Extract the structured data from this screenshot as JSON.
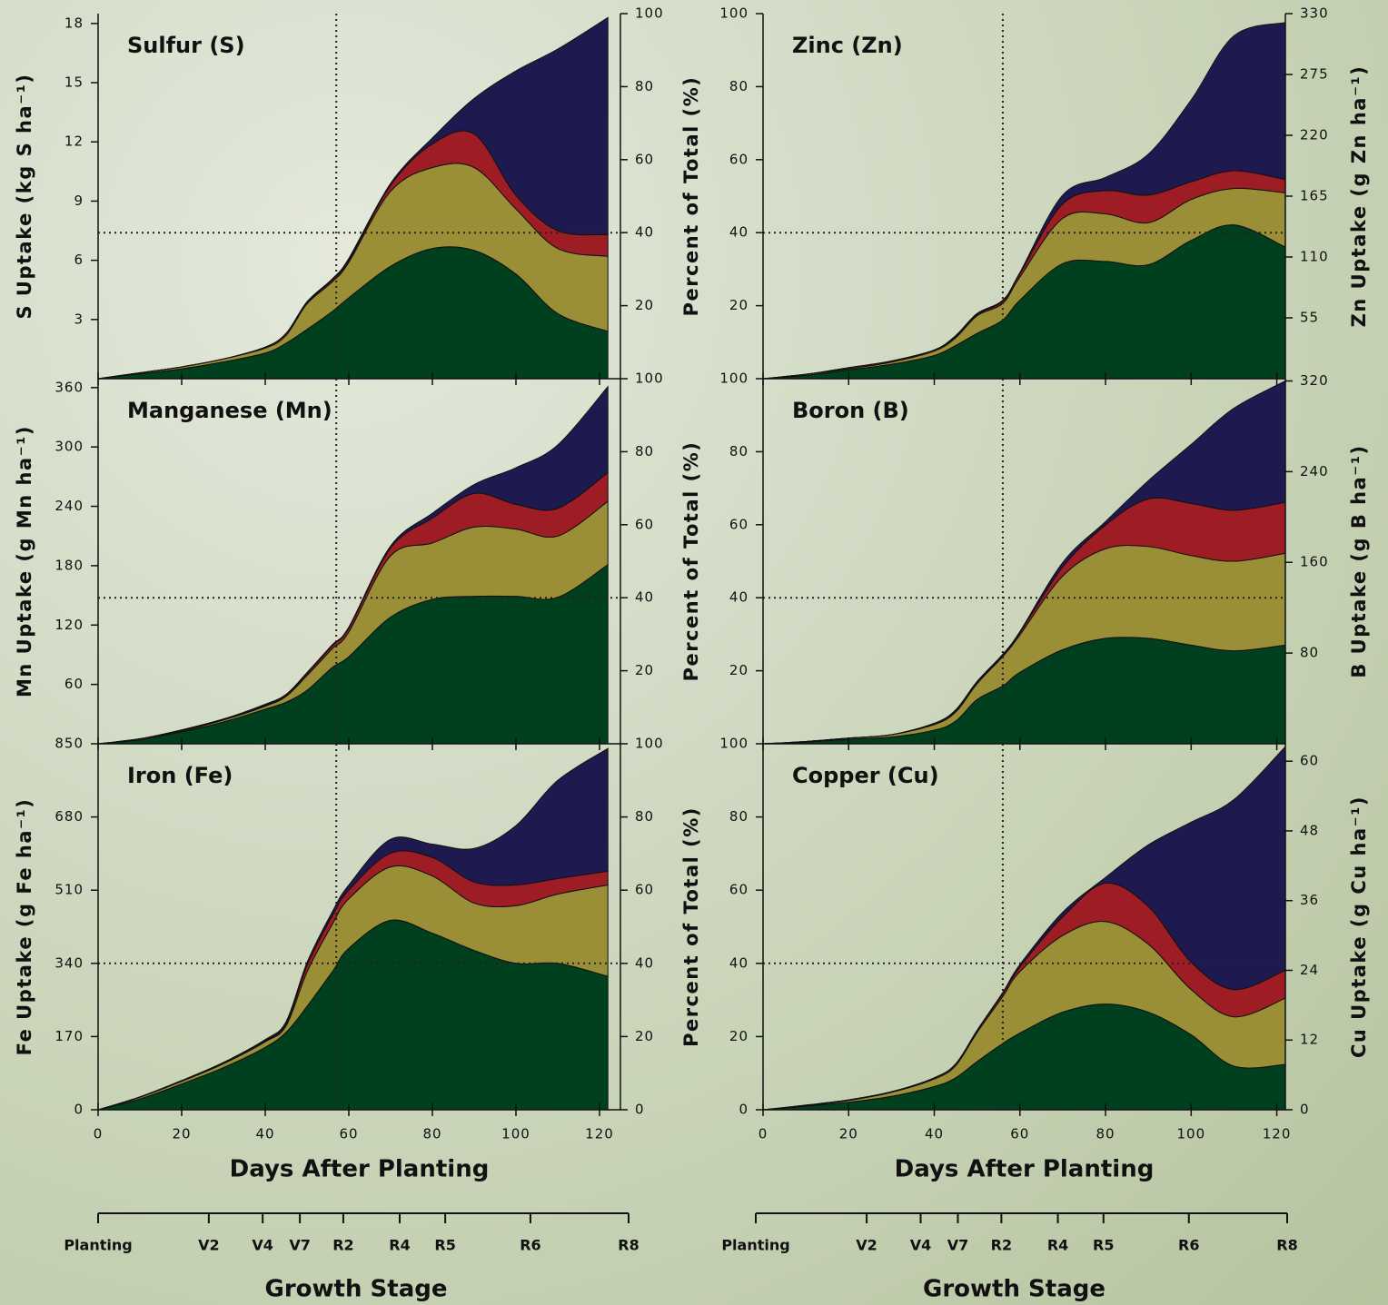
{
  "chart_data": [
    {
      "type": "area",
      "title": "Sulfur (S)",
      "ylabel": "S Uptake (kg S ha⁻¹)",
      "y_axis_side": "left",
      "x": [
        0,
        10,
        20,
        30,
        40,
        45,
        50,
        56,
        60,
        70,
        80,
        90,
        100,
        110,
        122
      ],
      "xlim": [
        0,
        125
      ],
      "xticks": [
        0,
        20,
        40,
        60,
        80,
        100,
        120
      ],
      "show_xtick_labels": false,
      "ylim": [
        0,
        18.5
      ],
      "yticks": [
        3,
        6,
        9,
        12,
        15,
        18
      ],
      "y2lim": [
        0,
        100
      ],
      "y2ticks": [
        20,
        40,
        60,
        80,
        100
      ],
      "vline": 57,
      "hline_y2": 40,
      "series": [
        {
          "color": "#00401f",
          "values": [
            0,
            0.25,
            0.5,
            0.85,
            1.3,
            1.8,
            2.5,
            3.4,
            4.1,
            5.7,
            6.6,
            6.5,
            5.3,
            3.3,
            2.4
          ]
        },
        {
          "color": "#9a8f36",
          "values": [
            0,
            0.05,
            0.1,
            0.15,
            0.25,
            0.4,
            1.3,
            1.5,
            1.8,
            3.8,
            4.1,
            4.2,
            3.3,
            3.3,
            3.8
          ]
        },
        {
          "color": "#9e1c24",
          "values": [
            0,
            0,
            0,
            0,
            0.05,
            0.1,
            0.05,
            0.1,
            0.1,
            0.3,
            1.2,
            1.7,
            0.7,
            0.9,
            1.1
          ]
        },
        {
          "color": "#1e1a50",
          "values": [
            0,
            0,
            0,
            0,
            0,
            0,
            0.05,
            0.05,
            0.1,
            0.1,
            0.3,
            1.8,
            6.3,
            9.2,
            11.0
          ]
        }
      ]
    },
    {
      "type": "area",
      "title": "Zinc (Zn)",
      "ylabel": "Zn Uptake (g Zn ha⁻¹)",
      "y_axis_side": "right",
      "y2label": "Percent of Total (%)",
      "x": [
        0,
        10,
        20,
        30,
        40,
        45,
        50,
        56,
        60,
        70,
        80,
        90,
        100,
        110,
        122
      ],
      "xlim": [
        0,
        122
      ],
      "xticks": [
        0,
        20,
        40,
        60,
        80,
        100,
        120
      ],
      "show_xtick_labels": false,
      "ylim": [
        0,
        330
      ],
      "yticks": [
        55,
        110,
        165,
        220,
        275,
        330
      ],
      "y2lim": [
        0,
        100
      ],
      "y2ticks": [
        20,
        40,
        60,
        80,
        100
      ],
      "vline": 56,
      "hline_y2": 40,
      "series": [
        {
          "color": "#00401f",
          "values": [
            0,
            3,
            8,
            13,
            21,
            30,
            41,
            53,
            71,
            104,
            106,
            103,
            125,
            139,
            119
          ]
        },
        {
          "color": "#9a8f36",
          "values": [
            0,
            1,
            1,
            2,
            4,
            7,
            16,
            15,
            21,
            41,
            43,
            38,
            37,
            33,
            49
          ]
        },
        {
          "color": "#9e1c24",
          "values": [
            0,
            0,
            1,
            1,
            1,
            1,
            1,
            2,
            3,
            13,
            21,
            25,
            16,
            16,
            12
          ]
        },
        {
          "color": "#1e1a50",
          "values": [
            0,
            0,
            0,
            0,
            0,
            1,
            1,
            1,
            1,
            8,
            12,
            37,
            74,
            122,
            142
          ]
        }
      ]
    },
    {
      "type": "area",
      "title": "Manganese (Mn)",
      "ylabel": "Mn Uptake (g Mn ha⁻¹)",
      "y_axis_side": "left",
      "x": [
        0,
        10,
        20,
        30,
        40,
        45,
        50,
        56,
        60,
        70,
        80,
        90,
        100,
        110,
        122
      ],
      "xlim": [
        0,
        125
      ],
      "xticks": [
        0,
        20,
        40,
        60,
        80,
        100,
        120
      ],
      "show_xtick_labels": false,
      "ylim": [
        0,
        369
      ],
      "yticks": [
        60,
        120,
        180,
        240,
        300,
        360
      ],
      "y2lim": [
        0,
        100
      ],
      "y2ticks": [
        20,
        40,
        60,
        80,
        100
      ],
      "vline": 57,
      "hline_y2": 40,
      "series": [
        {
          "color": "#00401f",
          "values": [
            0,
            4,
            12,
            22,
            35,
            42,
            54,
            77,
            88,
            128,
            146,
            149,
            149,
            148,
            181
          ]
        },
        {
          "color": "#9a8f36",
          "values": [
            0,
            1,
            1,
            2,
            3,
            6,
            15,
            19,
            25,
            62,
            57,
            70,
            68,
            62,
            64
          ]
        },
        {
          "color": "#9e1c24",
          "values": [
            0,
            0,
            1,
            1,
            1,
            1,
            2,
            3,
            4,
            8,
            25,
            34,
            25,
            28,
            29
          ]
        },
        {
          "color": "#1e1a50",
          "values": [
            0,
            0,
            0,
            0,
            1,
            1,
            1,
            1,
            1,
            2,
            5,
            9,
            37,
            64,
            87
          ]
        }
      ]
    },
    {
      "type": "area",
      "title": "Boron (B)",
      "ylabel": "B Uptake (g B ha⁻¹)",
      "y_axis_side": "right",
      "y2label": "Percent of Total (%)",
      "x": [
        0,
        10,
        20,
        30,
        40,
        45,
        50,
        56,
        60,
        70,
        80,
        90,
        100,
        110,
        122
      ],
      "xlim": [
        0,
        122
      ],
      "xticks": [
        0,
        20,
        40,
        60,
        80,
        100,
        120
      ],
      "show_xtick_labels": false,
      "ylim": [
        0,
        322
      ],
      "yticks": [
        80,
        160,
        240,
        320
      ],
      "y2lim": [
        0,
        100
      ],
      "y2ticks": [
        20,
        40,
        60,
        80,
        100
      ],
      "vline": 56,
      "hline_y2": 40,
      "series": [
        {
          "color": "#00401f",
          "values": [
            0,
            1.5,
            4,
            6,
            12,
            20,
            39,
            51,
            63,
            83,
            93,
            93,
            87,
            82,
            87
          ]
        },
        {
          "color": "#9a8f36",
          "values": [
            0,
            0.5,
            1,
            2,
            5,
            8,
            14,
            26,
            33,
            65,
            79,
            81,
            79,
            79,
            81
          ]
        },
        {
          "color": "#9e1c24",
          "values": [
            0,
            0,
            0,
            0,
            1,
            1,
            1,
            1,
            2,
            8,
            21,
            42,
            46,
            45,
            45
          ]
        },
        {
          "color": "#1e1a50",
          "values": [
            0,
            0,
            0,
            0,
            0,
            1,
            1,
            1,
            1,
            4,
            3,
            16,
            52,
            90,
            107
          ]
        }
      ]
    },
    {
      "type": "area",
      "title": "Iron (Fe)",
      "ylabel": "Fe Uptake (g Fe ha⁻¹)",
      "y_axis_side": "left",
      "xlabel": "Days After Planting",
      "x": [
        0,
        10,
        20,
        30,
        40,
        45,
        50,
        56,
        60,
        70,
        80,
        90,
        100,
        110,
        122
      ],
      "xlim": [
        0,
        125
      ],
      "xticks": [
        0,
        20,
        40,
        60,
        80,
        100,
        120
      ],
      "show_xtick_labels": true,
      "ylim": [
        0,
        850
      ],
      "yticks": [
        0,
        170,
        340,
        510,
        680,
        850
      ],
      "y2lim": [
        0,
        100
      ],
      "y2ticks": [
        0,
        20,
        40,
        60,
        80,
        100
      ],
      "vline": 57,
      "hline_y2": 40,
      "series": [
        {
          "color": "#00401f",
          "values": [
            0,
            25,
            60,
            98,
            145,
            180,
            240,
            320,
            375,
            440,
            410,
            370,
            340,
            340,
            310
          ]
        },
        {
          "color": "#9a8f36",
          "values": [
            0,
            4,
            6,
            9,
            13,
            15,
            80,
            110,
            115,
            124,
            133,
            110,
            134,
            161,
            212
          ]
        },
        {
          "color": "#9e1c24",
          "values": [
            0,
            0,
            1,
            1,
            2,
            5,
            15,
            20,
            20,
            32,
            43,
            49,
            48,
            36,
            32
          ]
        },
        {
          "color": "#1e1a50",
          "values": [
            0,
            1,
            1,
            2,
            3,
            5,
            7,
            9,
            12,
            32,
            31,
            78,
            138,
            228,
            285
          ]
        }
      ]
    },
    {
      "type": "area",
      "title": "Copper (Cu)",
      "ylabel": "Cu Uptake (g Cu ha⁻¹)",
      "y_axis_side": "right",
      "y2label": "Percent of Total (%)",
      "xlabel": "Days After Planting",
      "x": [
        0,
        10,
        20,
        30,
        40,
        45,
        50,
        56,
        60,
        70,
        80,
        90,
        100,
        110,
        122
      ],
      "xlim": [
        0,
        122
      ],
      "xticks": [
        0,
        20,
        40,
        60,
        80,
        100,
        120
      ],
      "show_xtick_labels": true,
      "ylim": [
        0,
        63
      ],
      "yticks": [
        0,
        12,
        24,
        36,
        48,
        60
      ],
      "y2lim": [
        0,
        100
      ],
      "y2ticks": [
        0,
        20,
        40,
        60,
        80,
        100
      ],
      "vline": 56,
      "hline_y2": 40,
      "series": [
        {
          "color": "#00401f",
          "values": [
            0,
            0.6,
            1.3,
            2.3,
            4,
            5.5,
            8.3,
            11.4,
            13.2,
            16.8,
            18.2,
            16.8,
            12.9,
            7.5,
            7.8
          ]
        },
        {
          "color": "#9a8f36",
          "values": [
            0,
            0.1,
            0.3,
            0.7,
            1.3,
            2.1,
            5,
            8.1,
            10.6,
            13.2,
            14.2,
            11.7,
            7.8,
            8.5,
            11.4
          ]
        },
        {
          "color": "#9e1c24",
          "values": [
            0,
            0.1,
            0.1,
            0.1,
            0.2,
            0.3,
            0.3,
            0.5,
            0.8,
            3.2,
            6.6,
            6.5,
            4.7,
            4.7,
            4.8
          ]
        },
        {
          "color": "#1e1a50",
          "values": [
            0,
            0,
            0,
            0,
            0,
            0,
            0.1,
            0.2,
            0.4,
            0.8,
            1,
            10.6,
            24.1,
            32.7,
            38.5
          ]
        }
      ]
    }
  ],
  "growth_stage": {
    "title": "Growth Stage",
    "xlim": [
      0,
      127
    ],
    "ticks": [
      {
        "value": 0,
        "label": "Planting"
      },
      {
        "value": 26.5,
        "label": "V2"
      },
      {
        "value": 39.4,
        "label": "V4"
      },
      {
        "value": 48.3,
        "label": "V7"
      },
      {
        "value": 58.7,
        "label": "R2"
      },
      {
        "value": 72.2,
        "label": "R4"
      },
      {
        "value": 83.1,
        "label": "R5"
      },
      {
        "value": 103.5,
        "label": "R6"
      },
      {
        "value": 127,
        "label": "R8"
      }
    ]
  }
}
